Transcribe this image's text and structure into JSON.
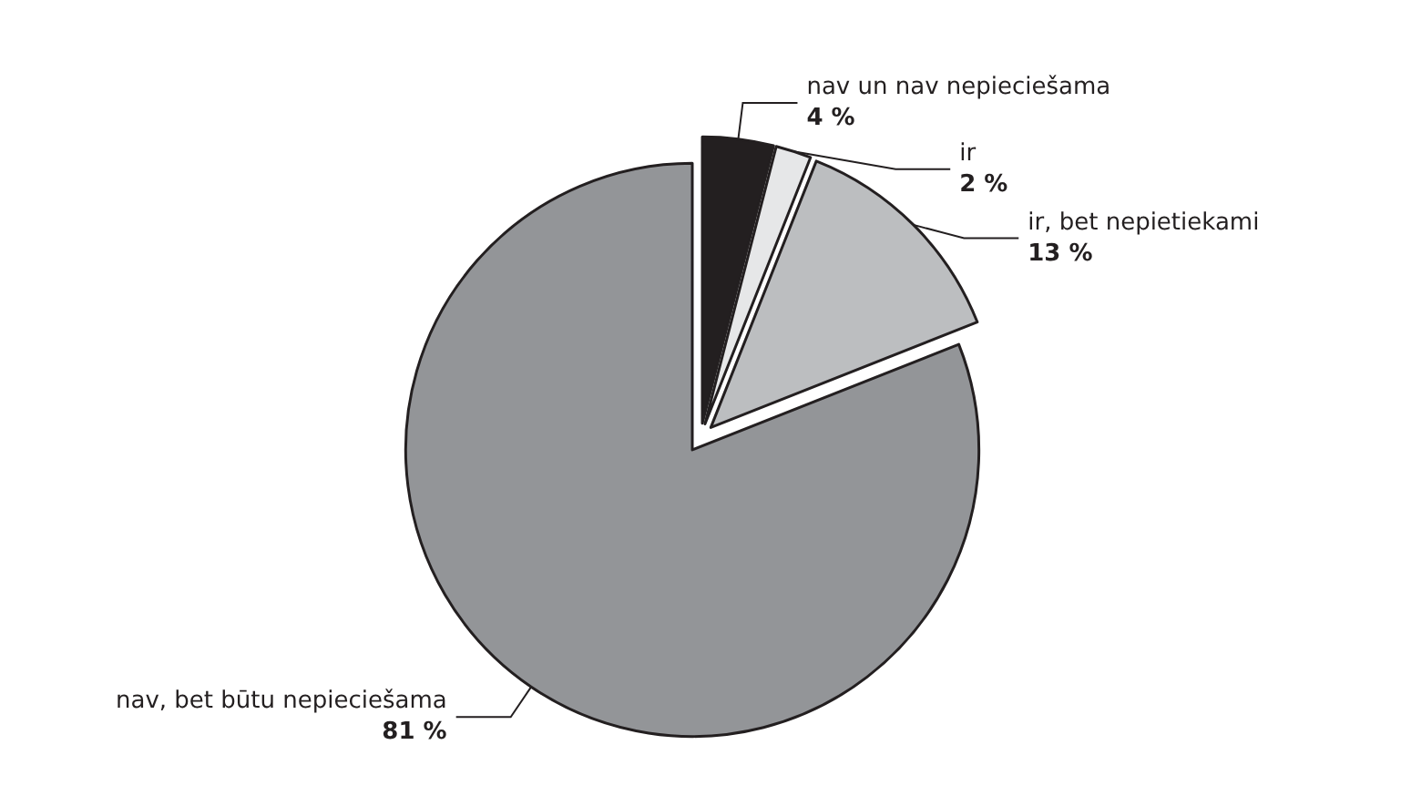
{
  "chart_data": {
    "type": "pie",
    "categories": [
      "nav un nav nepieciešama",
      "ir",
      "ir, bet nepietiekami",
      "nav, bet būtu nepieciešama"
    ],
    "values": [
      4,
      2,
      13,
      81
    ],
    "value_labels": [
      "4 %",
      "2 %",
      "13 %",
      "81 %"
    ],
    "colors": [
      "#231f20",
      "#e6e7e8",
      "#bcbec0",
      "#939598"
    ],
    "legend": false
  }
}
